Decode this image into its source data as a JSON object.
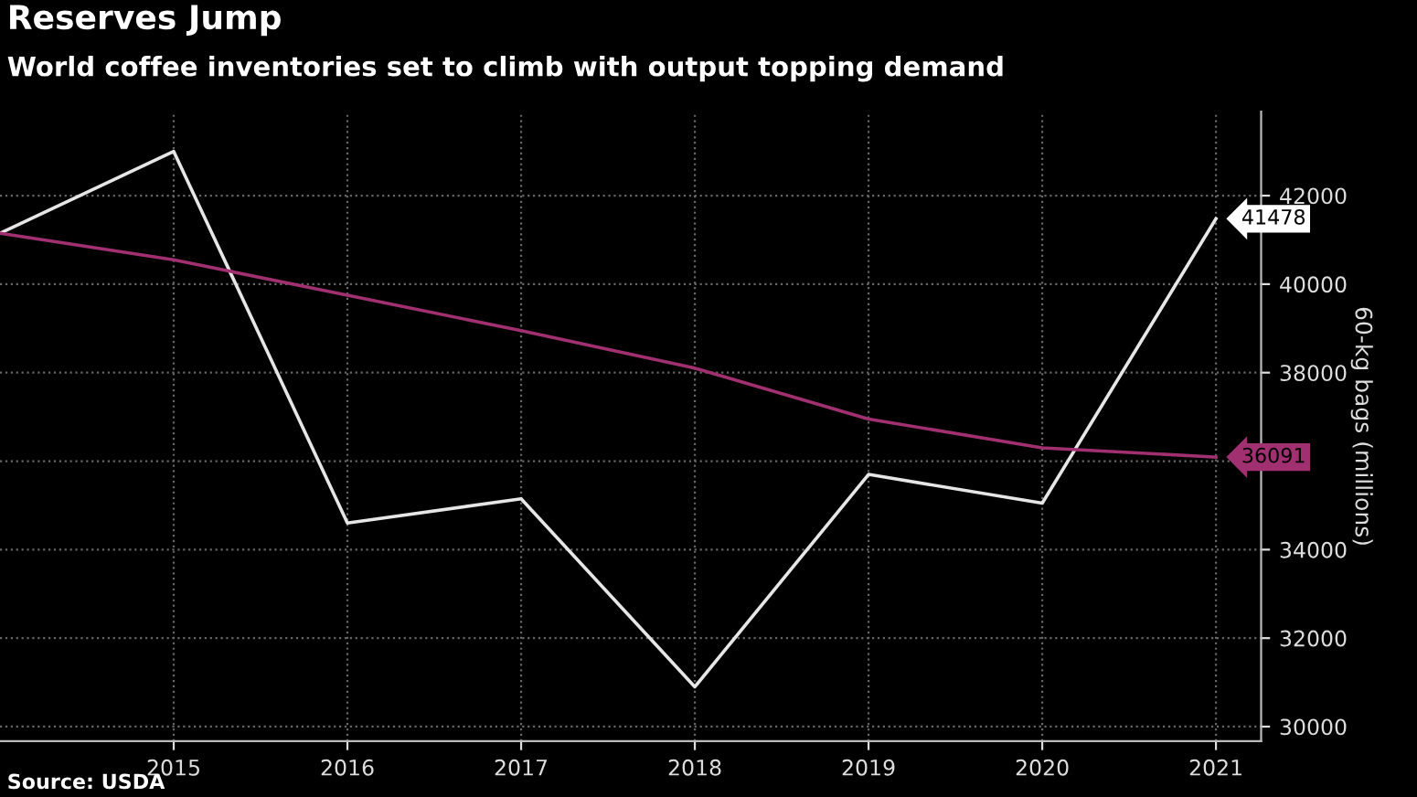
{
  "chart_data": {
    "type": "line",
    "title": "Reserves Jump",
    "subtitle": "World coffee inventories set to climb with output topping demand",
    "ylabel": "60-kg bags (millions)",
    "annotations": [
      "Source: USDA"
    ],
    "x": [
      2014,
      2015,
      2016,
      2017,
      2018,
      2019,
      2020,
      2021
    ],
    "series": [
      {
        "color": "#e6e6e6",
        "values": [
          41150,
          43000,
          34600,
          35150,
          30900,
          35700,
          35050,
          41478
        ],
        "value_labels": [
          null,
          null,
          null,
          null,
          null,
          null,
          null,
          "41478"
        ]
      },
      {
        "color": "#a0306f",
        "values": [
          41150,
          40550,
          39750,
          38950,
          38100,
          36950,
          36300,
          36091
        ],
        "value_labels": [
          null,
          null,
          null,
          null,
          null,
          null,
          null,
          "36091"
        ]
      }
    ],
    "xlim": [
      2014,
      2021.26
    ],
    "xticks": [
      2015,
      2016,
      2017,
      2018,
      2019,
      2020,
      2021
    ],
    "ylim": [
      29670,
      43900
    ],
    "yticks": [
      30000,
      32000,
      34000,
      {
        "value": 36000,
        "label": null
      },
      38000,
      40000,
      42000
    ],
    "grid": true,
    "legend": false,
    "marker": "none",
    "line_style": "solid"
  }
}
